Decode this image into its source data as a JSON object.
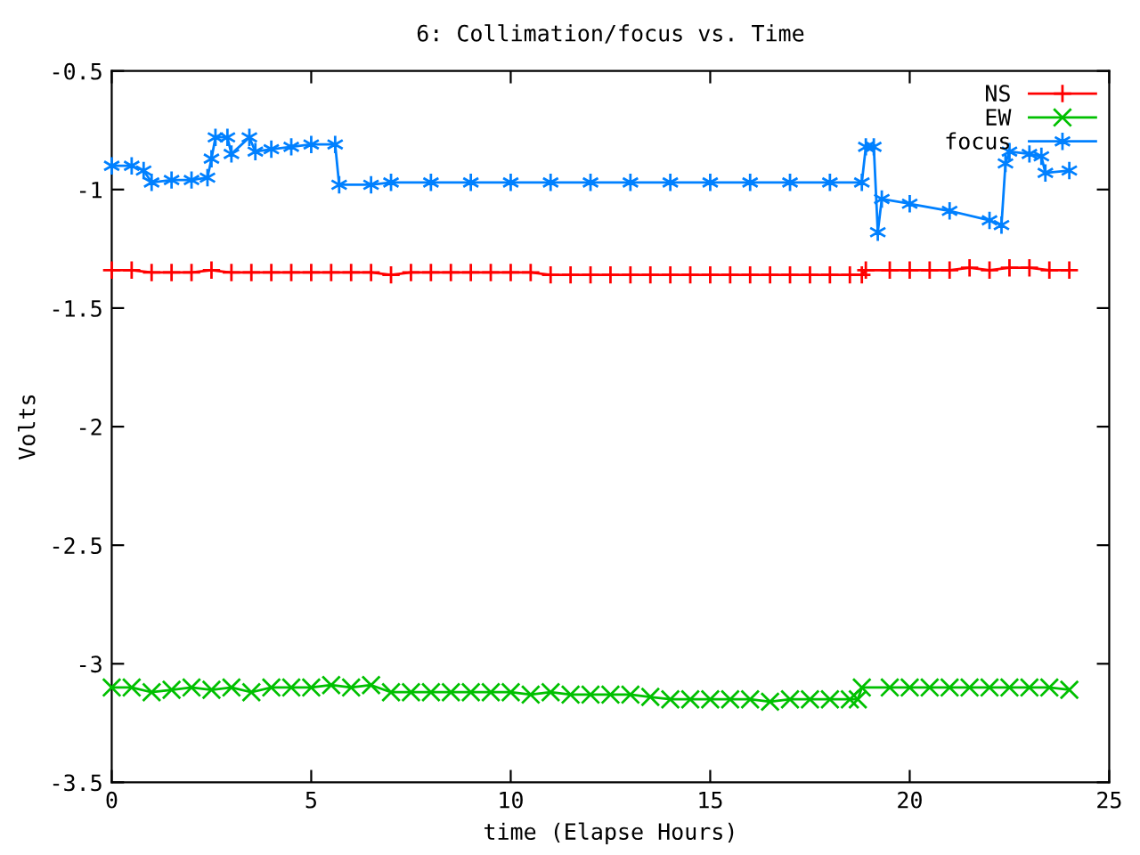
{
  "chart_data": {
    "type": "line",
    "title": "6: Collimation/focus vs. Time",
    "xlabel": "time (Elapse Hours)",
    "ylabel": "Volts",
    "xlim": [
      0,
      25
    ],
    "xticks": [
      0,
      5,
      10,
      15,
      20,
      25
    ],
    "ylim": [
      -3.5,
      -0.5
    ],
    "yticks": [
      {
        "value": -3.5,
        "label": "-3.5"
      },
      {
        "value": -3,
        "label": "-3"
      },
      {
        "value": -2.5,
        "label": "-2.5"
      },
      {
        "value": -2,
        "label": "-2"
      },
      {
        "value": -1.5,
        "label": "-1.5"
      },
      {
        "value": -1,
        "label": "-1"
      },
      {
        "value": -0.5,
        "label": "-0.5"
      }
    ],
    "grid": false,
    "legend": "top right",
    "series": [
      {
        "name": "NS",
        "color": "#ff0000",
        "marker": "plus",
        "x": [
          0,
          0.5,
          1,
          1.5,
          2,
          2.5,
          3,
          3.5,
          4,
          4.5,
          5,
          5.5,
          6,
          6.5,
          7,
          7.5,
          8,
          8.5,
          9,
          9.5,
          10,
          10.5,
          11,
          11.5,
          12,
          12.5,
          13,
          13.5,
          14,
          14.5,
          15,
          15.5,
          16,
          16.5,
          17,
          17.5,
          18,
          18.5,
          18.8,
          18.9,
          19.5,
          20,
          20.5,
          21,
          21.5,
          22,
          22.5,
          23,
          23.5,
          24
        ],
        "values": [
          -1.34,
          -1.34,
          -1.35,
          -1.35,
          -1.35,
          -1.34,
          -1.35,
          -1.35,
          -1.35,
          -1.35,
          -1.35,
          -1.35,
          -1.35,
          -1.35,
          -1.36,
          -1.35,
          -1.35,
          -1.35,
          -1.35,
          -1.35,
          -1.35,
          -1.35,
          -1.36,
          -1.36,
          -1.36,
          -1.36,
          -1.36,
          -1.36,
          -1.36,
          -1.36,
          -1.36,
          -1.36,
          -1.36,
          -1.36,
          -1.36,
          -1.36,
          -1.36,
          -1.36,
          -1.36,
          -1.34,
          -1.34,
          -1.34,
          -1.34,
          -1.34,
          -1.33,
          -1.34,
          -1.33,
          -1.33,
          -1.34,
          -1.34
        ]
      },
      {
        "name": "EW",
        "color": "#00c000",
        "marker": "x",
        "x": [
          0,
          0.5,
          1,
          1.5,
          2,
          2.5,
          3,
          3.5,
          4,
          4.5,
          5,
          5.5,
          6,
          6.5,
          7,
          7.5,
          8,
          8.5,
          9,
          9.5,
          10,
          10.5,
          11,
          11.5,
          12,
          12.5,
          13,
          13.5,
          14,
          14.5,
          15,
          15.5,
          16,
          16.5,
          17,
          17.5,
          18,
          18.5,
          18.7,
          18.8,
          19.5,
          20,
          20.5,
          21,
          21.5,
          22,
          22.5,
          23,
          23.5,
          24
        ],
        "values": [
          -3.1,
          -3.1,
          -3.12,
          -3.11,
          -3.1,
          -3.11,
          -3.1,
          -3.12,
          -3.1,
          -3.1,
          -3.1,
          -3.09,
          -3.1,
          -3.09,
          -3.12,
          -3.12,
          -3.12,
          -3.12,
          -3.12,
          -3.12,
          -3.12,
          -3.13,
          -3.12,
          -3.13,
          -3.13,
          -3.13,
          -3.13,
          -3.14,
          -3.15,
          -3.15,
          -3.15,
          -3.15,
          -3.15,
          -3.16,
          -3.15,
          -3.15,
          -3.15,
          -3.15,
          -3.15,
          -3.1,
          -3.1,
          -3.1,
          -3.1,
          -3.1,
          -3.1,
          -3.1,
          -3.1,
          -3.1,
          -3.1,
          -3.11
        ]
      },
      {
        "name": "focus",
        "color": "#0080ff",
        "marker": "cross",
        "x": [
          0,
          0.5,
          0.8,
          1,
          1.5,
          2,
          2.4,
          2.5,
          2.6,
          2.9,
          3,
          3.45,
          3.6,
          4,
          4.5,
          5,
          5.6,
          5.7,
          6.5,
          7,
          8,
          9,
          10,
          11,
          12,
          13,
          14,
          15,
          16,
          17,
          18,
          18.8,
          18.9,
          19.1,
          19.2,
          19.3,
          20,
          21,
          22,
          22.3,
          22.4,
          22.5,
          23,
          23.3,
          23.4,
          24
        ],
        "values": [
          -0.9,
          -0.9,
          -0.92,
          -0.97,
          -0.96,
          -0.96,
          -0.95,
          -0.87,
          -0.78,
          -0.78,
          -0.85,
          -0.78,
          -0.84,
          -0.83,
          -0.82,
          -0.81,
          -0.81,
          -0.98,
          -0.98,
          -0.97,
          -0.97,
          -0.97,
          -0.97,
          -0.97,
          -0.97,
          -0.97,
          -0.97,
          -0.97,
          -0.97,
          -0.97,
          -0.97,
          -0.97,
          -0.82,
          -0.82,
          -1.18,
          -1.04,
          -1.06,
          -1.09,
          -1.13,
          -1.15,
          -0.89,
          -0.84,
          -0.85,
          -0.86,
          -0.93,
          -0.92
        ]
      }
    ]
  }
}
